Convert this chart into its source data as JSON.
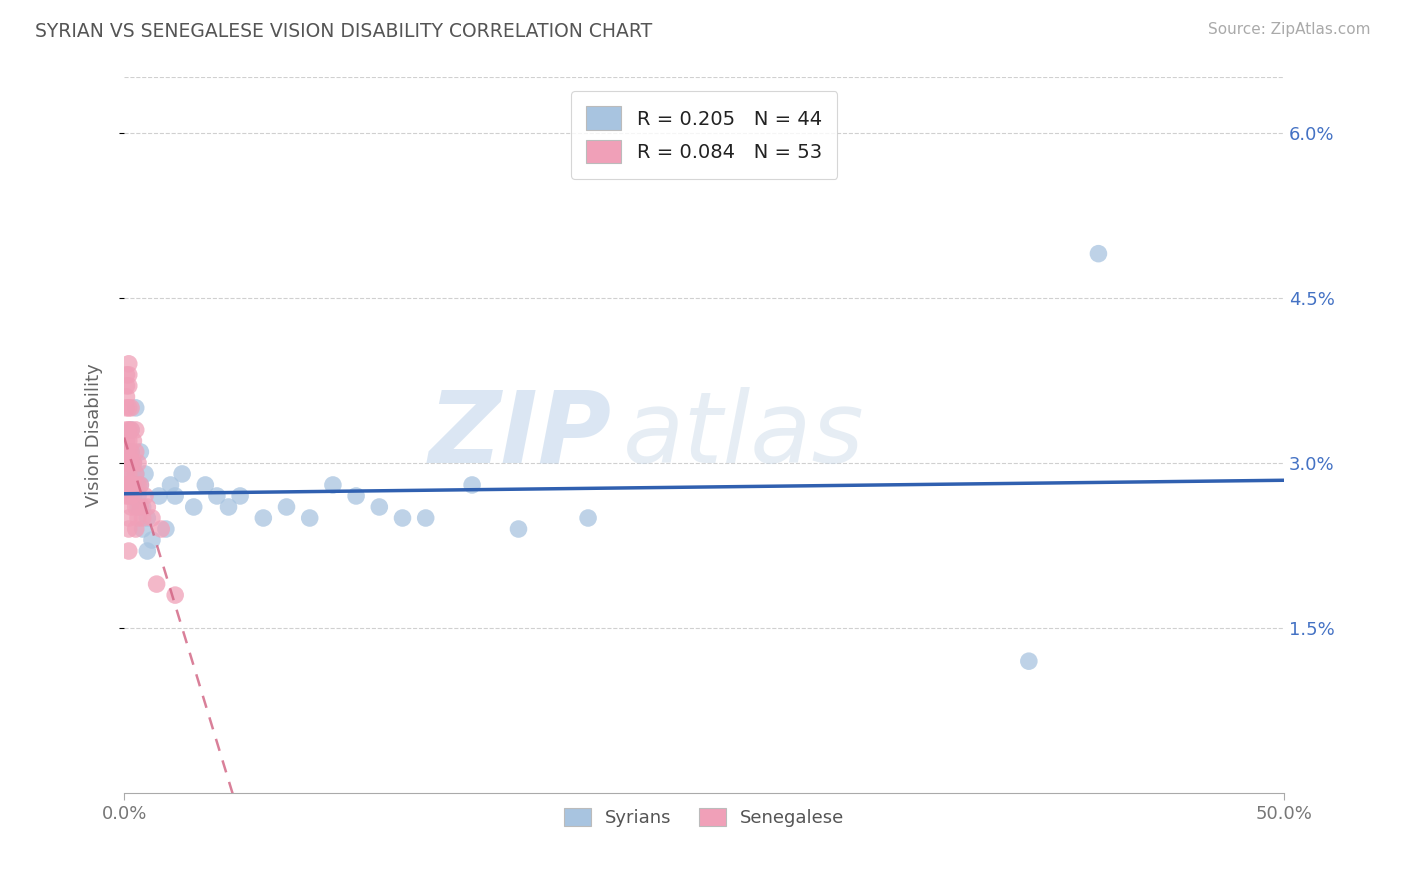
{
  "title": "SYRIAN VS SENEGALESE VISION DISABILITY CORRELATION CHART",
  "source": "Source: ZipAtlas.com",
  "ylabel": "Vision Disability",
  "xlim": [
    0.0,
    0.5
  ],
  "ylim": [
    0.0,
    0.065
  ],
  "xticks": [
    0.0,
    0.5
  ],
  "xticklabels": [
    "0.0%",
    "50.0%"
  ],
  "yticks": [
    0.015,
    0.03,
    0.045,
    0.06
  ],
  "yticklabels": [
    "1.5%",
    "3.0%",
    "4.5%",
    "6.0%"
  ],
  "syrian_R": "0.205",
  "syrian_N": "44",
  "senegalese_R": "0.084",
  "senegalese_N": "53",
  "syrian_color": "#a8c4e0",
  "senegalese_color": "#f0a0b8",
  "syrian_line_color": "#3060b0",
  "senegalese_line_color": "#d06080",
  "watermark_zip": "ZIP",
  "watermark_atlas": "atlas",
  "background_color": "#ffffff",
  "legend_label_syrians": "Syrians",
  "legend_label_senegalese": "Senegalese",
  "syrians_x": [
    0.002,
    0.002,
    0.003,
    0.003,
    0.003,
    0.004,
    0.004,
    0.004,
    0.005,
    0.005,
    0.005,
    0.006,
    0.006,
    0.007,
    0.007,
    0.008,
    0.008,
    0.009,
    0.01,
    0.01,
    0.012,
    0.015,
    0.018,
    0.02,
    0.022,
    0.025,
    0.03,
    0.035,
    0.04,
    0.045,
    0.05,
    0.06,
    0.07,
    0.08,
    0.09,
    0.1,
    0.11,
    0.12,
    0.13,
    0.15,
    0.17,
    0.2,
    0.39,
    0.42
  ],
  "syrians_y": [
    0.029,
    0.028,
    0.031,
    0.03,
    0.033,
    0.028,
    0.027,
    0.03,
    0.029,
    0.028,
    0.035,
    0.027,
    0.026,
    0.028,
    0.031,
    0.026,
    0.024,
    0.029,
    0.022,
    0.025,
    0.023,
    0.027,
    0.024,
    0.028,
    0.027,
    0.029,
    0.026,
    0.028,
    0.027,
    0.026,
    0.027,
    0.025,
    0.026,
    0.025,
    0.028,
    0.027,
    0.026,
    0.025,
    0.025,
    0.028,
    0.024,
    0.025,
    0.012,
    0.049
  ],
  "senegalese_x": [
    0.001,
    0.001,
    0.001,
    0.001,
    0.001,
    0.001,
    0.001,
    0.001,
    0.001,
    0.001,
    0.001,
    0.002,
    0.002,
    0.002,
    0.002,
    0.002,
    0.002,
    0.002,
    0.002,
    0.002,
    0.002,
    0.002,
    0.002,
    0.002,
    0.002,
    0.003,
    0.003,
    0.003,
    0.003,
    0.003,
    0.003,
    0.003,
    0.003,
    0.004,
    0.004,
    0.004,
    0.005,
    0.005,
    0.005,
    0.005,
    0.005,
    0.006,
    0.006,
    0.006,
    0.007,
    0.007,
    0.008,
    0.009,
    0.01,
    0.012,
    0.014,
    0.016,
    0.022
  ],
  "senegalese_y": [
    0.028,
    0.03,
    0.032,
    0.033,
    0.035,
    0.036,
    0.037,
    0.038,
    0.029,
    0.031,
    0.027,
    0.033,
    0.035,
    0.037,
    0.038,
    0.039,
    0.028,
    0.03,
    0.032,
    0.025,
    0.027,
    0.024,
    0.022,
    0.031,
    0.029,
    0.033,
    0.035,
    0.028,
    0.03,
    0.027,
    0.026,
    0.028,
    0.031,
    0.03,
    0.032,
    0.028,
    0.029,
    0.031,
    0.033,
    0.026,
    0.024,
    0.028,
    0.03,
    0.025,
    0.026,
    0.028,
    0.025,
    0.027,
    0.026,
    0.025,
    0.019,
    0.024,
    0.018
  ]
}
